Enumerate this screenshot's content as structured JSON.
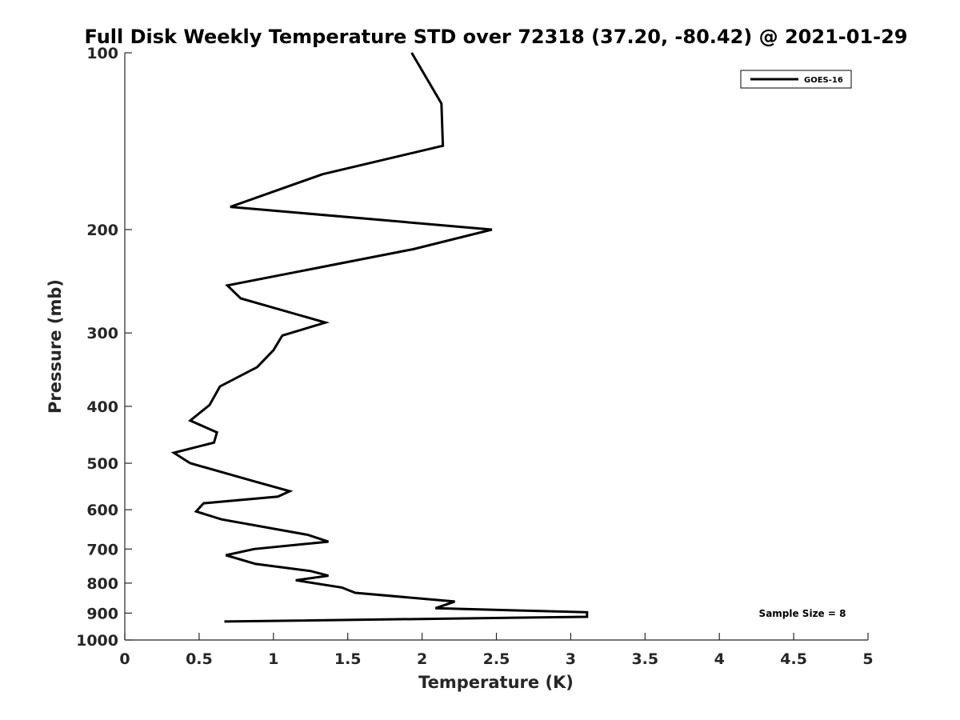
{
  "chart_data": {
    "type": "line",
    "title": "Full Disk Weekly Temperature STD over 72318 (37.20, -80.42) @ 2021-01-29",
    "xlabel": "Temperature (K)",
    "ylabel": "Pressure (mb)",
    "xlim": [
      0,
      5
    ],
    "ylim": [
      1000,
      100
    ],
    "y_scale": "log",
    "y_reversed": true,
    "x_ticks": [
      "0",
      "0.5",
      "1",
      "1.5",
      "2",
      "2.5",
      "3",
      "3.5",
      "4",
      "4.5",
      "5"
    ],
    "y_ticks": [
      "100",
      "200",
      "300",
      "400",
      "500",
      "600",
      "700",
      "800",
      "900",
      "1000"
    ],
    "grid": false,
    "legend_position": "top-right",
    "annotation": "Sample Size = 8",
    "series": [
      {
        "name": "GOES-16",
        "color": "#000000",
        "points": [
          [
            1.93,
            100
          ],
          [
            2.13,
            122
          ],
          [
            2.14,
            144
          ],
          [
            1.33,
            161
          ],
          [
            0.71,
            183
          ],
          [
            2.47,
            200
          ],
          [
            1.94,
            216
          ],
          [
            0.69,
            249
          ],
          [
            0.78,
            262
          ],
          [
            1.35,
            288
          ],
          [
            1.06,
            303
          ],
          [
            1.0,
            321
          ],
          [
            0.89,
            343
          ],
          [
            0.64,
            370
          ],
          [
            0.57,
            398
          ],
          [
            0.44,
            423
          ],
          [
            0.62,
            443
          ],
          [
            0.6,
            461
          ],
          [
            0.33,
            480
          ],
          [
            0.44,
            500
          ],
          [
            0.85,
            535
          ],
          [
            1.11,
            558
          ],
          [
            1.03,
            570
          ],
          [
            0.53,
            585
          ],
          [
            0.48,
            604
          ],
          [
            0.65,
            623
          ],
          [
            1.23,
            662
          ],
          [
            1.37,
            680
          ],
          [
            0.87,
            700
          ],
          [
            0.68,
            717
          ],
          [
            0.88,
            742
          ],
          [
            1.25,
            763
          ],
          [
            1.37,
            777
          ],
          [
            1.15,
            791
          ],
          [
            1.46,
            814
          ],
          [
            1.55,
            831
          ],
          [
            2.22,
            860
          ],
          [
            2.09,
            883
          ],
          [
            3.11,
            897
          ],
          [
            3.11,
            913
          ],
          [
            0.67,
            930
          ]
        ]
      }
    ]
  }
}
